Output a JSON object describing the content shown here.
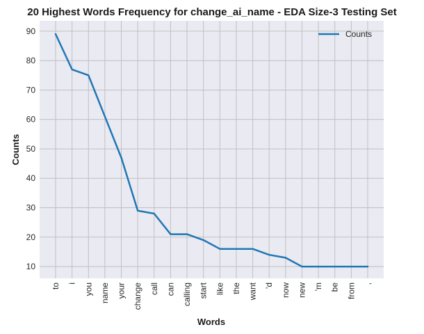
{
  "chart_data": {
    "type": "line",
    "title": "20 Highest Words Frequency for change_ai_name - EDA Size-3 Testing Set",
    "xlabel": "Words",
    "ylabel": "Counts",
    "categories": [
      "to",
      "i",
      "you",
      "name",
      "your",
      "change",
      "call",
      "can",
      "calling",
      "start",
      "like",
      "the",
      "want",
      "'d",
      "now",
      "new",
      "'m",
      "be",
      "from",
      ","
    ],
    "series": [
      {
        "name": "Counts",
        "color": "#1f77b4",
        "values": [
          89,
          77,
          75,
          61,
          47,
          29,
          28,
          21,
          21,
          19,
          16,
          16,
          16,
          14,
          13,
          10,
          10,
          10,
          10,
          10
        ]
      }
    ],
    "ylim": [
      6,
      93.5
    ],
    "yticks": [
      10,
      20,
      30,
      40,
      50,
      60,
      70,
      80,
      90
    ],
    "grid": true,
    "legend_position": "top-right",
    "background_color": "#eaeaf2",
    "grid_color": "#c0c0c0"
  }
}
